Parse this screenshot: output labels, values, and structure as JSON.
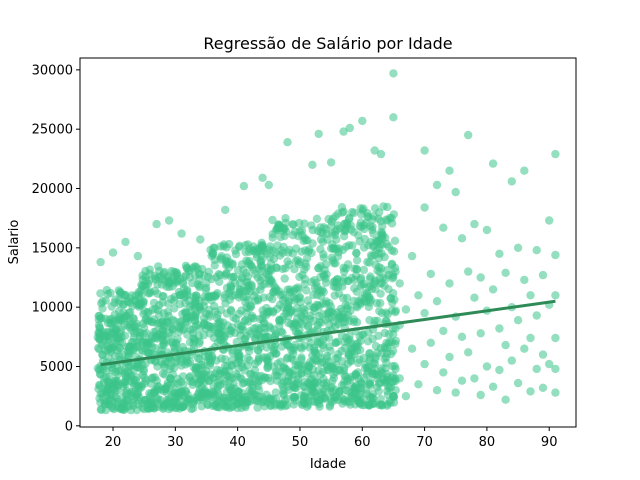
{
  "chart_data": {
    "type": "scatter",
    "title": "Regressão de Salário por Idade",
    "xlabel": "Idade",
    "ylabel": "Salario",
    "xlim": [
      14.7,
      94.3
    ],
    "ylim": [
      -100,
      31000
    ],
    "x_ticks": [
      20,
      30,
      40,
      50,
      60,
      70,
      80,
      90
    ],
    "x_tick_labels": [
      "20",
      "30",
      "40",
      "50",
      "60",
      "70",
      "80",
      "90"
    ],
    "y_ticks": [
      0,
      5000,
      10000,
      15000,
      20000,
      25000,
      30000
    ],
    "y_tick_labels": [
      "0",
      "5000",
      "10000",
      "15000",
      "20000",
      "25000",
      "30000"
    ],
    "grid": false,
    "legend": "none",
    "point_color": "#3cc48a",
    "line_color": "#2e8b57",
    "series": [
      {
        "kind": "scatter",
        "description_bands": [
          {
            "age_range": [
              18,
              24
            ],
            "salary_range": [
              1300,
              11500
            ],
            "outliers": [
              [
                18,
                13800
              ],
              [
                20,
                14600
              ],
              [
                22,
                15500
              ],
              [
                24,
                14300
              ]
            ]
          },
          {
            "age_range": [
              25,
              35
            ],
            "salary_range": [
              1400,
              13500
            ],
            "outliers": [
              [
                27,
                17000
              ],
              [
                29,
                17300
              ],
              [
                31,
                16200
              ],
              [
                34,
                15700
              ]
            ]
          },
          {
            "age_range": [
              36,
              45
            ],
            "salary_range": [
              1500,
              15500
            ],
            "outliers": [
              [
                38,
                18200
              ],
              [
                41,
                20200
              ],
              [
                44,
                20900
              ],
              [
                45,
                20300
              ]
            ]
          },
          {
            "age_range": [
              46,
              55
            ],
            "salary_range": [
              1600,
              17500
            ],
            "outliers": [
              [
                48,
                23900
              ],
              [
                52,
                22000
              ],
              [
                53,
                24600
              ],
              [
                55,
                22200
              ],
              [
                57,
                24800
              ]
            ]
          },
          {
            "age_range": [
              56,
              65
            ],
            "salary_range": [
              1700,
              18500
            ],
            "outliers": [
              [
                58,
                25100
              ],
              [
                60,
                25700
              ],
              [
                62,
                23200
              ],
              [
                63,
                22900
              ],
              [
                65,
                26000
              ],
              [
                65,
                29700
              ]
            ]
          }
        ],
        "sparse_points": [
          [
            66,
            12000
          ],
          [
            66,
            8500
          ],
          [
            66,
            4000
          ],
          [
            67,
            9800
          ],
          [
            67,
            2500
          ],
          [
            68,
            14300
          ],
          [
            68,
            6500
          ],
          [
            69,
            11000
          ],
          [
            69,
            3500
          ],
          [
            70,
            23200
          ],
          [
            70,
            18400
          ],
          [
            70,
            9500
          ],
          [
            70,
            5200
          ],
          [
            71,
            12800
          ],
          [
            71,
            7000
          ],
          [
            72,
            20300
          ],
          [
            72,
            10500
          ],
          [
            72,
            3000
          ],
          [
            73,
            16700
          ],
          [
            73,
            8000
          ],
          [
            73,
            4500
          ],
          [
            74,
            21500
          ],
          [
            74,
            12000
          ],
          [
            74,
            5800
          ],
          [
            75,
            19700
          ],
          [
            75,
            9200
          ],
          [
            75,
            2800
          ],
          [
            76,
            15800
          ],
          [
            76,
            7500
          ],
          [
            76,
            3800
          ],
          [
            77,
            24500
          ],
          [
            77,
            13000
          ],
          [
            77,
            6200
          ],
          [
            78,
            17000
          ],
          [
            78,
            10800
          ],
          [
            78,
            4000
          ],
          [
            79,
            12500
          ],
          [
            79,
            7800
          ],
          [
            79,
            2600
          ],
          [
            80,
            16500
          ],
          [
            80,
            9700
          ],
          [
            80,
            5000
          ],
          [
            81,
            22100
          ],
          [
            81,
            11500
          ],
          [
            81,
            3300
          ],
          [
            82,
            14500
          ],
          [
            82,
            8200
          ],
          [
            82,
            4700
          ],
          [
            83,
            12900
          ],
          [
            83,
            6800
          ],
          [
            83,
            2200
          ],
          [
            84,
            20600
          ],
          [
            84,
            10000
          ],
          [
            84,
            5500
          ],
          [
            85,
            15000
          ],
          [
            85,
            8900
          ],
          [
            85,
            3600
          ],
          [
            86,
            21500
          ],
          [
            86,
            12300
          ],
          [
            86,
            6500
          ],
          [
            87,
            11000
          ],
          [
            87,
            7400
          ],
          [
            87,
            2900
          ],
          [
            88,
            14800
          ],
          [
            88,
            9300
          ],
          [
            88,
            4800
          ],
          [
            89,
            12700
          ],
          [
            89,
            6000
          ],
          [
            89,
            3200
          ],
          [
            90,
            17300
          ],
          [
            90,
            10200
          ],
          [
            90,
            5200
          ],
          [
            91,
            22900
          ],
          [
            91,
            14400
          ],
          [
            91,
            11000
          ],
          [
            91,
            7400
          ],
          [
            91,
            4800
          ],
          [
            91,
            2800
          ]
        ]
      },
      {
        "kind": "regression_line",
        "points": [
          [
            18,
            5150
          ],
          [
            91,
            10500
          ]
        ]
      }
    ]
  }
}
